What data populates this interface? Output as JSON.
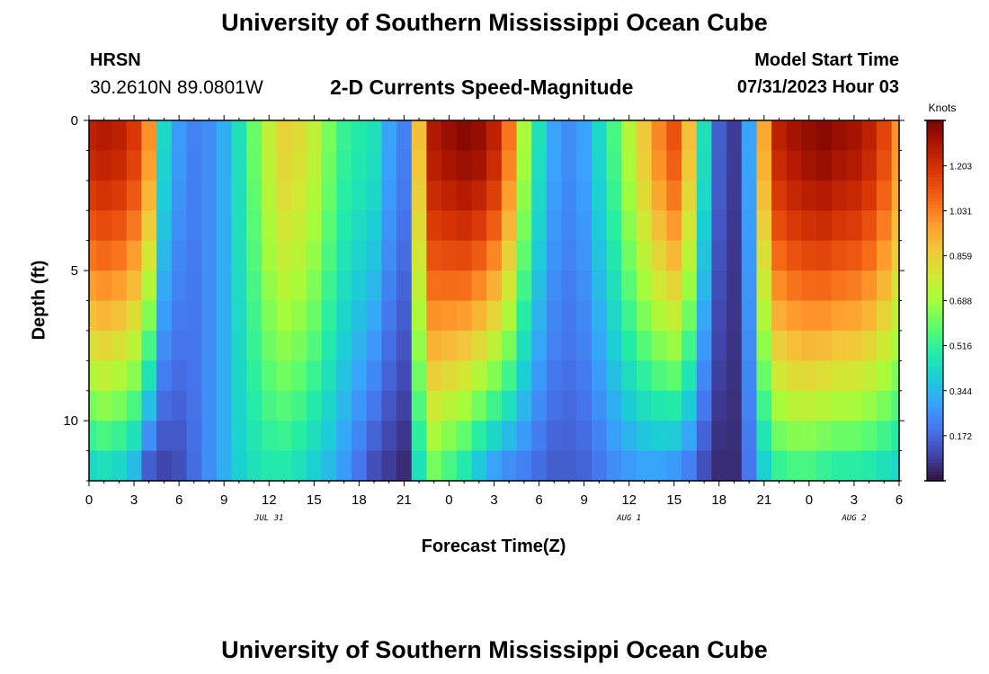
{
  "header": {
    "title": "University of Southern Mississippi Ocean Cube",
    "station": "HRSN",
    "coords": "30.2610N  89.0801W",
    "subtitle": "2-D Currents Speed-Magnitude",
    "model_start_label": "Model Start Time",
    "model_start_value": "07/31/2023 Hour 03"
  },
  "footer": {
    "title": "University of Southern Mississippi Ocean Cube"
  },
  "chart_data": {
    "type": "heatmap",
    "xlabel": "Forecast Time(Z)",
    "ylabel": "Depth (ft)",
    "x_tick_labels": [
      "0",
      "3",
      "6",
      "9",
      "12",
      "15",
      "18",
      "21",
      "0",
      "3",
      "6",
      "9",
      "12",
      "15",
      "18",
      "21",
      "0",
      "3",
      "6"
    ],
    "x_range_hours": [
      0,
      54
    ],
    "date_labels": [
      {
        "text": "JUL 31",
        "hour": 12
      },
      {
        "text": "AUG 1",
        "hour": 36
      },
      {
        "text": "AUG 2",
        "hour": 51
      }
    ],
    "y_tick_labels": [
      "0",
      "5",
      "10"
    ],
    "y_range_ft": [
      0,
      12
    ],
    "colorbar": {
      "unit": "Knots",
      "tick_labels": [
        "0.172",
        "0.344",
        "0.516",
        "0.688",
        "0.859",
        "1.031",
        "1.203"
      ],
      "range": [
        0.0,
        1.376
      ]
    },
    "colormap": [
      "#30123b",
      "#4145ab",
      "#4675ed",
      "#39a2fc",
      "#1bcfd4",
      "#24eca6",
      "#61fc6c",
      "#a4fc3b",
      "#d1e834",
      "#f3c63a",
      "#fe9b2d",
      "#f36315",
      "#d93806",
      "#b11901",
      "#7a0403"
    ],
    "depths_ft": [
      0.5,
      1.5,
      2.5,
      3.5,
      4.5,
      5.5,
      6.5,
      7.5,
      8.5,
      9.5,
      10.5,
      11.5
    ],
    "time_keyframes_hours": [
      0,
      1,
      2,
      3,
      4,
      4.5,
      5,
      6,
      7,
      8,
      9,
      10,
      11,
      12,
      13,
      14,
      15,
      16,
      17,
      18,
      19,
      20,
      21,
      21.5,
      22,
      22.5,
      23,
      24,
      25,
      26,
      27,
      28,
      29,
      30,
      30.5,
      31,
      32,
      33,
      34,
      35,
      36,
      37,
      38,
      39,
      40,
      41,
      42,
      43,
      43.5,
      44,
      44.5,
      45,
      45.5,
      46,
      47,
      48,
      49,
      50,
      51,
      52,
      53,
      54
    ],
    "surface_knots": [
      1.25,
      1.27,
      1.25,
      1.18,
      1.0,
      0.6,
      0.42,
      0.28,
      0.22,
      0.25,
      0.32,
      0.45,
      0.6,
      0.75,
      0.85,
      0.82,
      0.75,
      0.62,
      0.52,
      0.48,
      0.45,
      0.3,
      0.22,
      0.38,
      0.9,
      1.2,
      1.28,
      1.32,
      1.35,
      1.33,
      1.25,
      1.05,
      0.7,
      0.45,
      0.38,
      0.3,
      0.25,
      0.3,
      0.42,
      0.55,
      0.72,
      0.88,
      1.02,
      1.12,
      0.9,
      0.45,
      0.15,
      0.08,
      0.1,
      0.3,
      0.55,
      0.95,
      1.15,
      1.25,
      1.3,
      1.33,
      1.35,
      1.32,
      1.3,
      1.25,
      1.15,
      1.0
    ],
    "bottom_knots": [
      0.42,
      0.45,
      0.42,
      0.35,
      0.15,
      0.12,
      0.1,
      0.12,
      0.18,
      0.25,
      0.32,
      0.4,
      0.45,
      0.48,
      0.48,
      0.45,
      0.4,
      0.35,
      0.28,
      0.2,
      0.12,
      0.08,
      0.05,
      0.25,
      0.45,
      0.58,
      0.62,
      0.55,
      0.48,
      0.38,
      0.3,
      0.25,
      0.22,
      0.18,
      0.16,
      0.15,
      0.15,
      0.16,
      0.2,
      0.25,
      0.28,
      0.3,
      0.3,
      0.28,
      0.22,
      0.12,
      0.05,
      0.05,
      0.08,
      0.2,
      0.3,
      0.4,
      0.48,
      0.52,
      0.55,
      0.55,
      0.52,
      0.5,
      0.5,
      0.48,
      0.45,
      0.42
    ]
  }
}
